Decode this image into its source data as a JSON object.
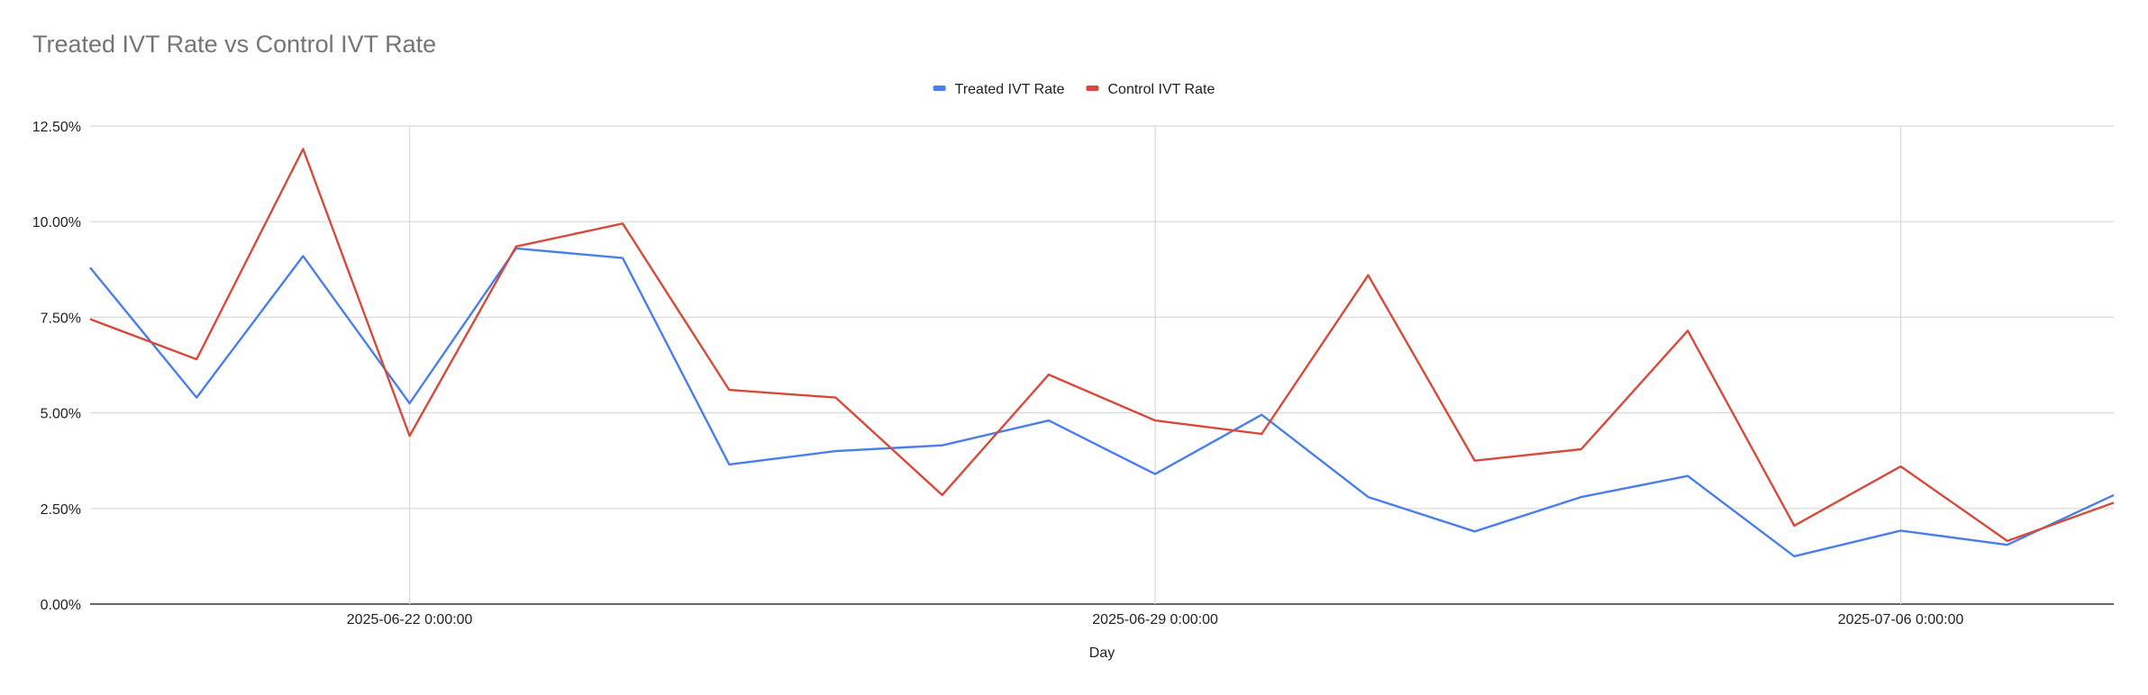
{
  "chart_data": {
    "type": "line",
    "title": "Treated IVT Rate vs Control IVT Rate",
    "xlabel": "Day",
    "ylabel": "",
    "x": [
      "2025-06-19",
      "2025-06-20",
      "2025-06-21",
      "2025-06-22",
      "2025-06-23",
      "2025-06-24",
      "2025-06-25",
      "2025-06-26",
      "2025-06-27",
      "2025-06-28",
      "2025-06-29",
      "2025-06-30",
      "2025-07-01",
      "2025-07-02",
      "2025-07-03",
      "2025-07-04",
      "2025-07-05",
      "2025-07-06",
      "2025-07-07",
      "2025-07-08"
    ],
    "x_ticks": [
      {
        "x": "2025-06-22",
        "label": "2025-06-22 0:00:00"
      },
      {
        "x": "2025-06-29",
        "label": "2025-06-29 0:00:00"
      },
      {
        "x": "2025-07-06",
        "label": "2025-07-06 0:00:00"
      }
    ],
    "y_ticks": [
      "0.00%",
      "2.50%",
      "5.00%",
      "7.50%",
      "10.00%",
      "12.50%"
    ],
    "ylim": [
      0,
      12.5
    ],
    "y_unit": "%",
    "grid": true,
    "legend_position": "top-center",
    "series": [
      {
        "name": "Treated IVT Rate",
        "color": "#4a7ee8",
        "values": [
          8.8,
          5.4,
          9.1,
          5.25,
          9.3,
          9.05,
          3.65,
          4.0,
          4.15,
          4.8,
          3.4,
          4.95,
          2.8,
          1.9,
          2.8,
          3.35,
          1.25,
          1.92,
          1.55,
          2.85
        ]
      },
      {
        "name": "Control IVT Rate",
        "color": "#d64a3b",
        "values": [
          7.45,
          6.4,
          11.9,
          4.4,
          9.35,
          9.95,
          5.6,
          5.4,
          2.85,
          6.0,
          4.8,
          4.45,
          8.6,
          3.75,
          4.05,
          7.15,
          2.05,
          3.6,
          1.65,
          2.65
        ]
      }
    ]
  }
}
